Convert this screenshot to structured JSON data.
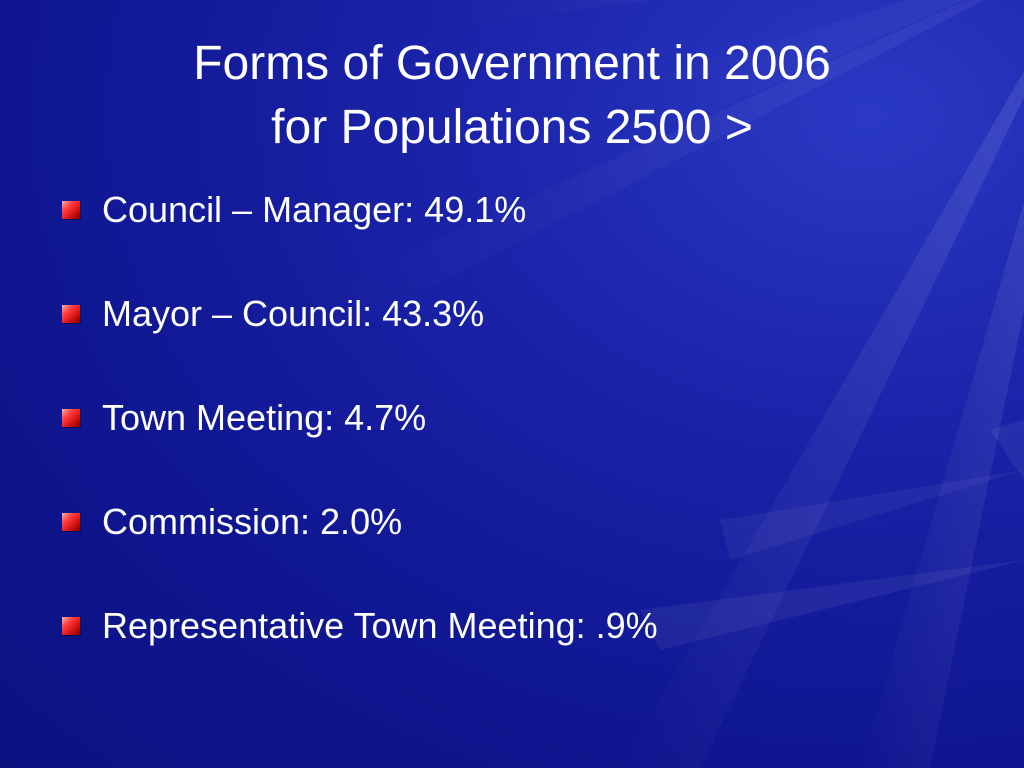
{
  "slide": {
    "title_line1": "Forms of Government in 2006",
    "title_line2": "for Populations 2500 >",
    "bullets": [
      {
        "text": "Council – Manager:  49.1%"
      },
      {
        "text": "Mayor – Council:  43.3%"
      },
      {
        "text": "Town Meeting:  4.7%"
      },
      {
        "text": "Commission:  2.0%"
      },
      {
        "text": "Representative Town Meeting:  .9%"
      }
    ]
  },
  "colors": {
    "background": "#1a22a8",
    "text": "#ffffff",
    "bullet": "#e01818"
  },
  "icons": {
    "bullet": "square-bullet-icon"
  }
}
